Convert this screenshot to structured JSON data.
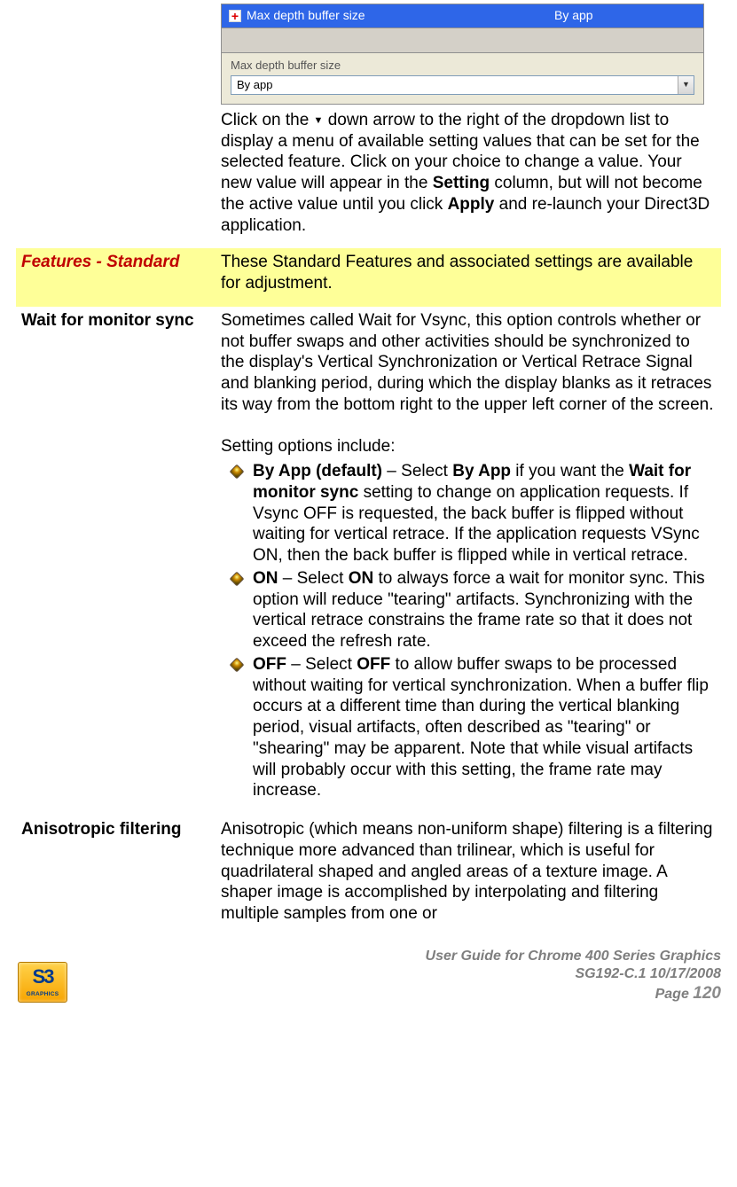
{
  "screenshot": {
    "selected_row": {
      "plus_glyph": "+",
      "label": "Max depth buffer size",
      "value": "By app",
      "bg_color": "#2e66e8"
    },
    "region": {
      "label": "Max depth buffer size"
    },
    "dropdown": {
      "text": "By app",
      "arrow_glyph": "▼"
    }
  },
  "row_intro": {
    "text_parts": {
      "p1": "Click on the ",
      "arrow_glyph": "▼",
      "p2": " down arrow to the right of the dropdown list to display a menu of available setting values that can be set for the selected feature. Click on your choice to change a value. Your new value will appear in the ",
      "b1": "Setting",
      "p3": " column, but will not become the active value until you click ",
      "b2": "Apply",
      "p4": " and re-launch your Direct3D application."
    }
  },
  "row_features": {
    "label": "Features - Standard",
    "text": "These Standard Features and associated settings are available for adjustment.",
    "highlight_bg": "#feff98",
    "label_color": "#c00000"
  },
  "row_wait": {
    "label": "Wait for monitor sync",
    "para1": "Sometimes called Wait for Vsync, this option controls whether or not buffer swaps and other activities should be synchronized to the display's Vertical Synchronization or Vertical Retrace Signal and blanking period, during which the display blanks as it retraces its way from the bottom right to the upper left corner of the screen.",
    "para2": "Setting options include:",
    "options": {
      "byapp": {
        "b1": "By App (default)",
        "t1": " – Select ",
        "b2": "By App",
        "t2": " if you want the ",
        "b3": "Wait for monitor sync",
        "t3": " setting to change on application requests. If Vsync OFF is requested, the back buffer is flipped without waiting for vertical retrace. If the application requests VSync ON, then the back buffer is flipped while in vertical retrace."
      },
      "on": {
        "b1": "ON",
        "t1": " – Select ",
        "b2": "ON",
        "t2": " to always force a wait for monitor sync. This option will reduce \"tearing\" artifacts. Synchronizing with the vertical retrace constrains the frame rate so that it does not exceed the refresh rate."
      },
      "off": {
        "b1": "OFF",
        "t1": " – Select ",
        "b2": "OFF",
        "t2": " to allow buffer swaps to be processed without waiting for vertical synchronization. When a buffer flip occurs at a different time than during the vertical blanking period, visual artifacts, often described as \"tearing\" or \"shearing\" may be apparent. Note that while visual artifacts will probably occur with this setting, the frame rate may increase."
      }
    }
  },
  "row_aniso": {
    "label": "Anisotropic filtering",
    "text": "Anisotropic (which means non-uniform shape) filtering is a filtering technique more advanced than trilinear, which is useful for quadrilateral shaped and angled areas of a texture image. A shaper image is accomplished by interpolating and filtering multiple samples from one or"
  },
  "footer": {
    "logo": {
      "main": "S3",
      "sub": "GRAPHICS"
    },
    "line1": "User Guide for Chrome 400 Series Graphics",
    "line2": "SG192-C.1   10/17/2008",
    "page_label": "Page ",
    "page_num": "120"
  }
}
